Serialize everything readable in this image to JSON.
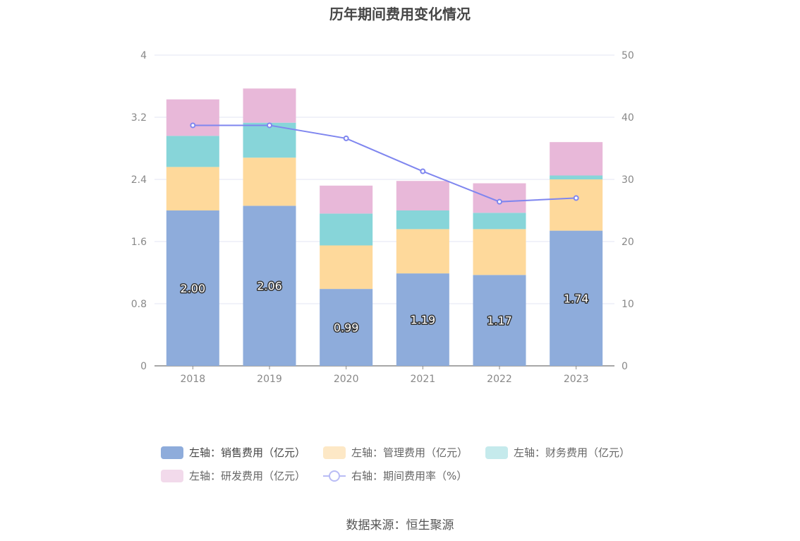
{
  "title": "历年期间费用变化情况",
  "source": "数据来源：恒生聚源",
  "chart_data": {
    "type": "bar",
    "stacked": true,
    "categories": [
      "2018",
      "2019",
      "2020",
      "2021",
      "2022",
      "2023"
    ],
    "series": [
      {
        "name": "左轴：销售费用（亿元）",
        "axis": "left",
        "color": "#8eacdb",
        "values": [
          2.0,
          2.06,
          0.99,
          1.19,
          1.17,
          1.74
        ],
        "labels": [
          "2.00",
          "2.06",
          "0.99",
          "1.19",
          "1.17",
          "1.74"
        ]
      },
      {
        "name": "左轴：管理费用（亿元）",
        "axis": "left",
        "color": "#fed99b",
        "values": [
          0.56,
          0.62,
          0.56,
          0.57,
          0.59,
          0.66
        ]
      },
      {
        "name": "左轴：财务费用（亿元）",
        "axis": "left",
        "color": "#87d5d9",
        "values": [
          0.4,
          0.45,
          0.41,
          0.24,
          0.21,
          0.05
        ]
      },
      {
        "name": "左轴：研发费用（亿元）",
        "axis": "left",
        "color": "#e8b8d9",
        "values": [
          0.47,
          0.44,
          0.36,
          0.38,
          0.38,
          0.43
        ]
      }
    ],
    "line": {
      "name": "右轴：期间费用率（%）",
      "axis": "right",
      "color": "#7f86ef",
      "values": [
        38.7,
        38.7,
        36.6,
        31.3,
        26.4,
        27.0
      ]
    },
    "left_axis": {
      "min": 0,
      "max": 4,
      "ticks": [
        "0",
        "0.8",
        "1.6",
        "2.4",
        "3.2",
        "4"
      ]
    },
    "right_axis": {
      "min": 0,
      "max": 50,
      "ticks": [
        "0",
        "10",
        "20",
        "30",
        "40",
        "50"
      ]
    },
    "legend_position": "bottom",
    "grid": true
  }
}
